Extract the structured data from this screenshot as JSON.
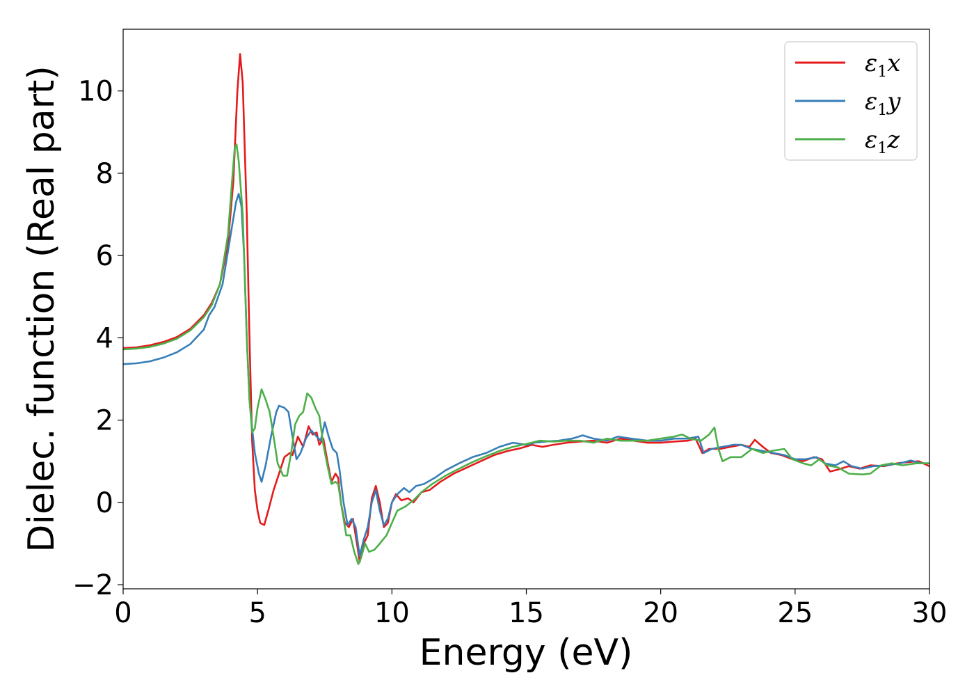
{
  "chart_data": {
    "type": "line",
    "title": "",
    "xlabel": "Energy (eV)",
    "ylabel": "Dielec. function (Real part)",
    "xlim": [
      0,
      30
    ],
    "ylim": [
      -2.1,
      11.5
    ],
    "xticks": [
      0,
      5,
      10,
      15,
      20,
      25,
      30
    ],
    "xtick_labels": [
      "0",
      "5",
      "10",
      "15",
      "20",
      "25",
      "30"
    ],
    "yticks": [
      -2,
      0,
      2,
      4,
      6,
      8,
      10
    ],
    "ytick_labels": [
      "−2",
      "0",
      "2",
      "4",
      "6",
      "8",
      "10"
    ],
    "grid": false,
    "legend_position": "top-right",
    "series": [
      {
        "name": "ε1x",
        "legend_symbol": "ε",
        "legend_sub": "1",
        "legend_suffix": "x",
        "color": "#e41a1c",
        "points": [
          [
            0,
            3.75
          ],
          [
            0.5,
            3.77
          ],
          [
            1,
            3.82
          ],
          [
            1.5,
            3.9
          ],
          [
            2,
            4.02
          ],
          [
            2.5,
            4.22
          ],
          [
            3,
            4.55
          ],
          [
            3.3,
            4.85
          ],
          [
            3.6,
            5.3
          ],
          [
            3.9,
            6.3
          ],
          [
            4.1,
            7.8
          ],
          [
            4.25,
            10.0
          ],
          [
            4.35,
            10.9
          ],
          [
            4.45,
            10.2
          ],
          [
            4.6,
            7.0
          ],
          [
            4.7,
            4.0
          ],
          [
            4.8,
            1.5
          ],
          [
            4.9,
            0.3
          ],
          [
            5.0,
            -0.2
          ],
          [
            5.1,
            -0.5
          ],
          [
            5.25,
            -0.55
          ],
          [
            5.4,
            -0.2
          ],
          [
            5.6,
            0.3
          ],
          [
            5.8,
            0.7
          ],
          [
            6.0,
            1.1
          ],
          [
            6.2,
            1.2
          ],
          [
            6.3,
            1.15
          ],
          [
            6.5,
            1.6
          ],
          [
            6.7,
            1.35
          ],
          [
            6.9,
            1.85
          ],
          [
            7.05,
            1.65
          ],
          [
            7.2,
            1.7
          ],
          [
            7.3,
            1.4
          ],
          [
            7.45,
            1.55
          ],
          [
            7.6,
            1.0
          ],
          [
            7.75,
            0.5
          ],
          [
            7.9,
            0.7
          ],
          [
            8.0,
            0.6
          ],
          [
            8.1,
            0.0
          ],
          [
            8.25,
            -0.5
          ],
          [
            8.4,
            -0.6
          ],
          [
            8.55,
            -0.4
          ],
          [
            8.7,
            -1.0
          ],
          [
            8.8,
            -1.45
          ],
          [
            8.95,
            -1.0
          ],
          [
            9.1,
            -0.8
          ],
          [
            9.25,
            0.1
          ],
          [
            9.4,
            0.4
          ],
          [
            9.55,
            0.0
          ],
          [
            9.7,
            -0.6
          ],
          [
            9.85,
            -0.5
          ],
          [
            10.0,
            0.0
          ],
          [
            10.15,
            0.2
          ],
          [
            10.35,
            0.05
          ],
          [
            10.6,
            0.1
          ],
          [
            10.8,
            0.0
          ],
          [
            11.1,
            0.25
          ],
          [
            11.4,
            0.3
          ],
          [
            11.8,
            0.5
          ],
          [
            12.3,
            0.7
          ],
          [
            12.8,
            0.85
          ],
          [
            13.3,
            1.0
          ],
          [
            13.8,
            1.15
          ],
          [
            14.3,
            1.25
          ],
          [
            14.8,
            1.32
          ],
          [
            15.2,
            1.4
          ],
          [
            15.6,
            1.35
          ],
          [
            16.0,
            1.4
          ],
          [
            16.5,
            1.45
          ],
          [
            17.0,
            1.48
          ],
          [
            17.5,
            1.5
          ],
          [
            18.0,
            1.45
          ],
          [
            18.5,
            1.55
          ],
          [
            19.0,
            1.5
          ],
          [
            19.5,
            1.45
          ],
          [
            20.0,
            1.45
          ],
          [
            20.5,
            1.48
          ],
          [
            21.0,
            1.5
          ],
          [
            21.3,
            1.55
          ],
          [
            21.55,
            1.2
          ],
          [
            21.8,
            1.3
          ],
          [
            22.2,
            1.3
          ],
          [
            22.6,
            1.35
          ],
          [
            23.0,
            1.4
          ],
          [
            23.3,
            1.35
          ],
          [
            23.5,
            1.52
          ],
          [
            23.8,
            1.35
          ],
          [
            24.1,
            1.2
          ],
          [
            24.5,
            1.15
          ],
          [
            24.9,
            1.05
          ],
          [
            25.3,
            1.0
          ],
          [
            25.7,
            1.1
          ],
          [
            26.0,
            1.05
          ],
          [
            26.3,
            0.75
          ],
          [
            26.6,
            0.8
          ],
          [
            27.0,
            0.88
          ],
          [
            27.4,
            0.82
          ],
          [
            27.8,
            0.9
          ],
          [
            28.3,
            0.88
          ],
          [
            28.8,
            0.95
          ],
          [
            29.2,
            0.98
          ],
          [
            29.6,
            1.0
          ],
          [
            30.0,
            0.88
          ]
        ]
      },
      {
        "name": "ε1y",
        "legend_symbol": "ε",
        "legend_sub": "1",
        "legend_suffix": "y",
        "color": "#377eb8",
        "points": [
          [
            0,
            3.36
          ],
          [
            0.5,
            3.38
          ],
          [
            1,
            3.43
          ],
          [
            1.5,
            3.52
          ],
          [
            2,
            3.65
          ],
          [
            2.5,
            3.85
          ],
          [
            3,
            4.2
          ],
          [
            3.2,
            4.55
          ],
          [
            3.4,
            4.75
          ],
          [
            3.7,
            5.3
          ],
          [
            4.0,
            6.5
          ],
          [
            4.2,
            7.3
          ],
          [
            4.3,
            7.5
          ],
          [
            4.4,
            7.2
          ],
          [
            4.5,
            6.0
          ],
          [
            4.6,
            4.0
          ],
          [
            4.7,
            2.5
          ],
          [
            4.8,
            1.8
          ],
          [
            4.9,
            1.2
          ],
          [
            5.05,
            0.7
          ],
          [
            5.15,
            0.5
          ],
          [
            5.3,
            0.9
          ],
          [
            5.5,
            1.6
          ],
          [
            5.7,
            2.2
          ],
          [
            5.8,
            2.35
          ],
          [
            6.0,
            2.3
          ],
          [
            6.15,
            2.2
          ],
          [
            6.3,
            1.6
          ],
          [
            6.45,
            1.05
          ],
          [
            6.6,
            1.2
          ],
          [
            6.8,
            1.55
          ],
          [
            7.0,
            1.75
          ],
          [
            7.2,
            1.6
          ],
          [
            7.35,
            1.5
          ],
          [
            7.5,
            1.95
          ],
          [
            7.65,
            1.6
          ],
          [
            7.8,
            1.3
          ],
          [
            7.95,
            1.2
          ],
          [
            8.05,
            0.8
          ],
          [
            8.2,
            0.0
          ],
          [
            8.35,
            -0.55
          ],
          [
            8.5,
            -0.4
          ],
          [
            8.65,
            -0.6
          ],
          [
            8.8,
            -1.3
          ],
          [
            8.95,
            -0.9
          ],
          [
            9.1,
            -0.6
          ],
          [
            9.25,
            0.0
          ],
          [
            9.4,
            0.3
          ],
          [
            9.55,
            -0.2
          ],
          [
            9.7,
            -0.55
          ],
          [
            9.85,
            -0.4
          ],
          [
            10.0,
            0.0
          ],
          [
            10.2,
            0.2
          ],
          [
            10.45,
            0.35
          ],
          [
            10.65,
            0.25
          ],
          [
            10.9,
            0.4
          ],
          [
            11.2,
            0.45
          ],
          [
            11.6,
            0.6
          ],
          [
            12.0,
            0.78
          ],
          [
            12.5,
            0.95
          ],
          [
            13.0,
            1.1
          ],
          [
            13.5,
            1.2
          ],
          [
            14.0,
            1.35
          ],
          [
            14.5,
            1.45
          ],
          [
            15.0,
            1.4
          ],
          [
            15.3,
            1.45
          ],
          [
            15.7,
            1.48
          ],
          [
            16.2,
            1.5
          ],
          [
            16.7,
            1.55
          ],
          [
            17.1,
            1.63
          ],
          [
            17.5,
            1.55
          ],
          [
            18.0,
            1.5
          ],
          [
            18.4,
            1.6
          ],
          [
            18.9,
            1.55
          ],
          [
            19.5,
            1.5
          ],
          [
            20.0,
            1.5
          ],
          [
            20.5,
            1.55
          ],
          [
            21.0,
            1.55
          ],
          [
            21.4,
            1.6
          ],
          [
            21.6,
            1.2
          ],
          [
            21.9,
            1.3
          ],
          [
            22.3,
            1.35
          ],
          [
            22.7,
            1.4
          ],
          [
            23.0,
            1.4
          ],
          [
            23.4,
            1.3
          ],
          [
            23.8,
            1.25
          ],
          [
            24.2,
            1.2
          ],
          [
            24.6,
            1.15
          ],
          [
            25.0,
            1.05
          ],
          [
            25.4,
            1.05
          ],
          [
            25.8,
            1.1
          ],
          [
            26.1,
            0.95
          ],
          [
            26.5,
            0.9
          ],
          [
            26.8,
            1.0
          ],
          [
            27.1,
            0.88
          ],
          [
            27.5,
            0.82
          ],
          [
            27.9,
            0.88
          ],
          [
            28.4,
            0.9
          ],
          [
            28.9,
            0.95
          ],
          [
            29.3,
            1.02
          ],
          [
            29.7,
            0.95
          ],
          [
            30.0,
            0.95
          ]
        ]
      },
      {
        "name": "ε1z",
        "legend_symbol": "ε",
        "legend_sub": "1",
        "legend_suffix": "z",
        "color": "#4daf4a",
        "points": [
          [
            0,
            3.72
          ],
          [
            0.5,
            3.74
          ],
          [
            1,
            3.78
          ],
          [
            1.5,
            3.86
          ],
          [
            2,
            3.98
          ],
          [
            2.5,
            4.18
          ],
          [
            3,
            4.5
          ],
          [
            3.3,
            4.8
          ],
          [
            3.6,
            5.3
          ],
          [
            3.9,
            6.5
          ],
          [
            4.05,
            7.8
          ],
          [
            4.15,
            8.6
          ],
          [
            4.22,
            8.7
          ],
          [
            4.3,
            8.3
          ],
          [
            4.45,
            7.0
          ],
          [
            4.6,
            4.0
          ],
          [
            4.7,
            2.5
          ],
          [
            4.8,
            1.7
          ],
          [
            4.9,
            1.8
          ],
          [
            5.0,
            2.3
          ],
          [
            5.15,
            2.75
          ],
          [
            5.3,
            2.5
          ],
          [
            5.45,
            2.2
          ],
          [
            5.6,
            1.6
          ],
          [
            5.75,
            0.95
          ],
          [
            5.95,
            0.65
          ],
          [
            6.1,
            0.65
          ],
          [
            6.25,
            1.2
          ],
          [
            6.4,
            1.9
          ],
          [
            6.55,
            2.1
          ],
          [
            6.7,
            2.2
          ],
          [
            6.85,
            2.65
          ],
          [
            7.0,
            2.55
          ],
          [
            7.15,
            2.3
          ],
          [
            7.3,
            2.1
          ],
          [
            7.45,
            1.4
          ],
          [
            7.6,
            0.9
          ],
          [
            7.75,
            0.45
          ],
          [
            7.9,
            0.5
          ],
          [
            8.0,
            0.45
          ],
          [
            8.15,
            -0.2
          ],
          [
            8.3,
            -0.8
          ],
          [
            8.45,
            -0.8
          ],
          [
            8.6,
            -1.2
          ],
          [
            8.75,
            -1.5
          ],
          [
            8.85,
            -1.35
          ],
          [
            9.0,
            -1.0
          ],
          [
            9.15,
            -1.2
          ],
          [
            9.35,
            -1.15
          ],
          [
            9.55,
            -1.0
          ],
          [
            9.8,
            -0.8
          ],
          [
            10.0,
            -0.5
          ],
          [
            10.2,
            -0.2
          ],
          [
            10.5,
            -0.1
          ],
          [
            10.8,
            0.05
          ],
          [
            11.1,
            0.25
          ],
          [
            11.5,
            0.45
          ],
          [
            12.0,
            0.65
          ],
          [
            12.5,
            0.82
          ],
          [
            13.0,
            0.98
          ],
          [
            13.5,
            1.12
          ],
          [
            14.0,
            1.25
          ],
          [
            14.5,
            1.35
          ],
          [
            15.0,
            1.42
          ],
          [
            15.5,
            1.5
          ],
          [
            16.0,
            1.48
          ],
          [
            16.5,
            1.5
          ],
          [
            17.0,
            1.5
          ],
          [
            17.5,
            1.45
          ],
          [
            18.0,
            1.55
          ],
          [
            18.5,
            1.5
          ],
          [
            19.0,
            1.5
          ],
          [
            19.5,
            1.5
          ],
          [
            20.0,
            1.55
          ],
          [
            20.5,
            1.6
          ],
          [
            20.8,
            1.65
          ],
          [
            21.1,
            1.55
          ],
          [
            21.5,
            1.5
          ],
          [
            21.8,
            1.65
          ],
          [
            22.0,
            1.82
          ],
          [
            22.15,
            1.3
          ],
          [
            22.3,
            1.0
          ],
          [
            22.6,
            1.1
          ],
          [
            23.0,
            1.1
          ],
          [
            23.4,
            1.3
          ],
          [
            23.8,
            1.2
          ],
          [
            24.1,
            1.25
          ],
          [
            24.6,
            1.3
          ],
          [
            24.9,
            1.05
          ],
          [
            25.3,
            0.95
          ],
          [
            25.6,
            0.9
          ],
          [
            25.9,
            1.05
          ],
          [
            26.2,
            0.9
          ],
          [
            26.6,
            0.85
          ],
          [
            27.0,
            0.7
          ],
          [
            27.5,
            0.68
          ],
          [
            27.8,
            0.7
          ],
          [
            28.2,
            0.9
          ],
          [
            28.6,
            0.95
          ],
          [
            29.0,
            0.9
          ],
          [
            29.5,
            0.95
          ],
          [
            30.0,
            0.95
          ]
        ]
      }
    ]
  }
}
